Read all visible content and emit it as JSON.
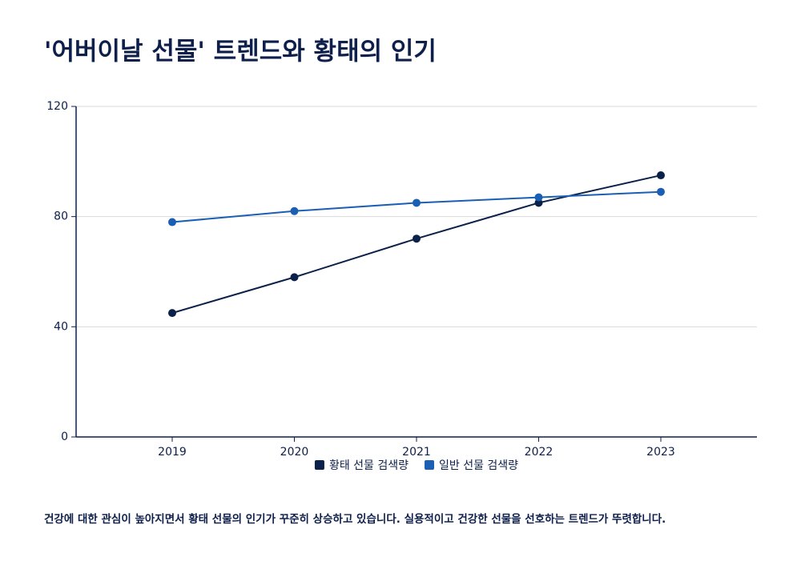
{
  "title": "'어버이날 선물' 트렌드와 황태의 인기",
  "chart_data": {
    "type": "line",
    "categories": [
      "2019",
      "2020",
      "2021",
      "2022",
      "2023"
    ],
    "series": [
      {
        "name": "황태 선물 검색량",
        "color": "#0b2149",
        "values": [
          45,
          58,
          72,
          85,
          95
        ]
      },
      {
        "name": "일반 선물 검색량",
        "color": "#1a5fb4",
        "values": [
          78,
          82,
          85,
          87,
          89
        ]
      }
    ],
    "ylim": [
      0,
      120
    ],
    "yticks": [
      0,
      40,
      80,
      120
    ],
    "grid": true,
    "legend": "bottom"
  },
  "caption": "건강에 대한 관심이 높아지면서 황태 선물의 인기가 꾸준히 상승하고 있습니다. 실용적이고 건강한 선물을 선호하는 트렌드가 뚜렷합니다."
}
